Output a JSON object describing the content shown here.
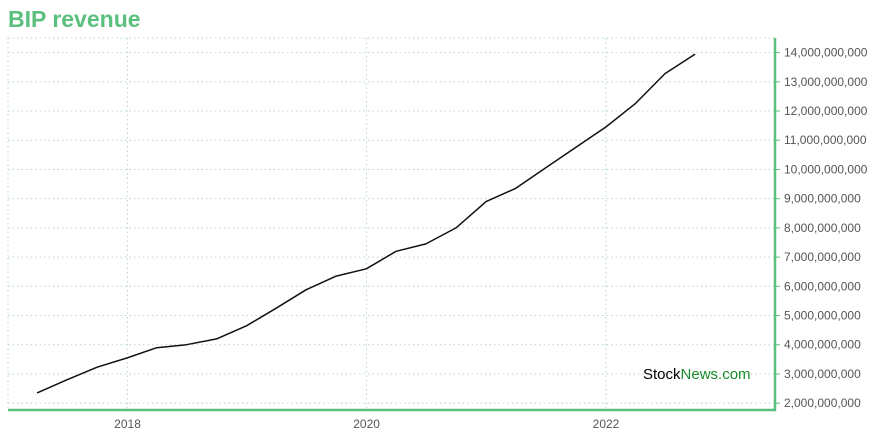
{
  "title": "BIP revenue",
  "colors": {
    "title": "#5bbf7e",
    "axis": "#5bbf7e",
    "grid": "#b5d9c8",
    "line": "#111111",
    "watermark_dark": "#000000",
    "watermark_green": "#1a8a2e"
  },
  "watermark": {
    "part1": "Stock",
    "part2": "News",
    "part3": ".com"
  },
  "chart_data": {
    "type": "line",
    "title": "BIP revenue",
    "xlabel": "",
    "ylabel": "",
    "x_tick_labels": [
      "2018",
      "2020",
      "2022"
    ],
    "y_tick_labels": [
      "2,000,000,000",
      "3,000,000,000",
      "4,000,000,000",
      "5,000,000,000",
      "6,000,000,000",
      "7,000,000,000",
      "8,000,000,000",
      "9,000,000,000",
      "10,000,000,000",
      "11,000,000,000",
      "12,000,000,000",
      "13,000,000,000",
      "14,000,000,000"
    ],
    "ylim": [
      1800000000,
      14500000000
    ],
    "xlim": [
      "2017-01-01",
      "2023-06-01"
    ],
    "y_axis_position": "right",
    "grid": true,
    "series": [
      {
        "x": [
          "2017-03-31",
          "2017-06-30",
          "2017-09-30",
          "2017-12-31",
          "2018-03-31",
          "2018-06-30",
          "2018-09-30",
          "2018-12-31",
          "2019-03-31",
          "2019-06-30",
          "2019-09-30",
          "2019-12-31",
          "2020-03-31",
          "2020-06-30",
          "2020-09-30",
          "2020-12-31",
          "2021-03-31",
          "2021-06-30",
          "2021-09-30",
          "2021-12-31",
          "2022-03-31",
          "2022-06-30",
          "2022-09-30"
        ],
        "values": [
          2350000000,
          2800000000,
          3230000000,
          3550000000,
          3900000000,
          4000000000,
          4200000000,
          4650000000,
          5250000000,
          5880000000,
          6350000000,
          6600000000,
          7200000000,
          7450000000,
          8000000000,
          8900000000,
          9350000000,
          10050000000,
          10750000000,
          11450000000,
          12250000000,
          13280000000,
          13950000000
        ]
      }
    ]
  }
}
